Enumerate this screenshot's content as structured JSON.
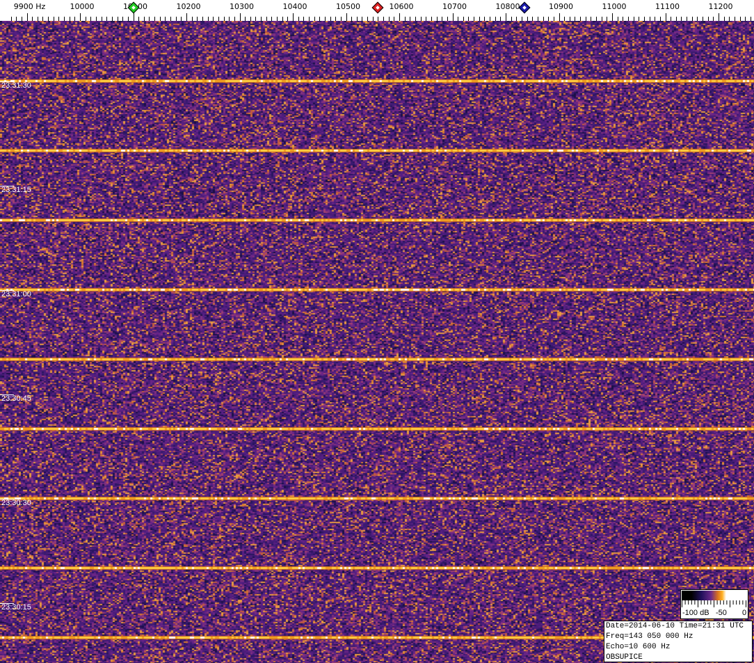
{
  "chart_data": {
    "type": "heatmap",
    "title": "",
    "xlabel": "Hz",
    "x_unit": "Hz",
    "xlim": [
      9870,
      11285
    ],
    "x_ticks": [
      "9900 Hz",
      "10000",
      "10100",
      "10200",
      "10300",
      "10400",
      "10500",
      "10600",
      "10700",
      "10800",
      "10900",
      "11000",
      "11100",
      "11200"
    ],
    "x_tick_values": [
      9900,
      10000,
      10100,
      10200,
      10300,
      10400,
      10500,
      10600,
      10700,
      10800,
      10900,
      11000,
      11100,
      11200
    ],
    "time_ticks": [
      "23:31:30",
      "23:31:15",
      "23:31:00",
      "23:30:45",
      "23:30:30",
      "23:30:15"
    ],
    "time_tick_seconds_after_2330": [
      90,
      75,
      60,
      45,
      30,
      15
    ],
    "time_range": [
      "23:30:06",
      "23:31:39"
    ],
    "signal_traces_time": [
      "23:31:30",
      "23:31:20",
      "23:31:10",
      "23:31:00",
      "23:30:50",
      "23:30:40",
      "23:30:30",
      "23:30:20",
      "23:30:10"
    ],
    "signal_trace_seconds_after_2330": [
      90,
      80,
      70,
      60,
      50,
      40,
      30,
      20,
      10
    ],
    "markers": [
      {
        "name": "green",
        "freq": 10100,
        "color": "#22cc22"
      },
      {
        "name": "red",
        "freq": 10560,
        "color": "#dd2222"
      },
      {
        "name": "blue",
        "freq": 10835,
        "color": "#1a1aaa"
      }
    ],
    "colorbar": {
      "min_db": -100,
      "max_db": 0,
      "labels": [
        "-100 dB",
        "-50",
        "0"
      ]
    },
    "colors": {
      "background": "#4a1c78",
      "noise_high": "#d0702a",
      "trace": "#ffe070"
    }
  },
  "info": {
    "line1": "Date=2014-06-10 Time=21:31 UTC",
    "line2": "Freq=143 050 000 Hz",
    "line3": "Echo=10 600 Hz",
    "line4": "OBSUPICE"
  }
}
